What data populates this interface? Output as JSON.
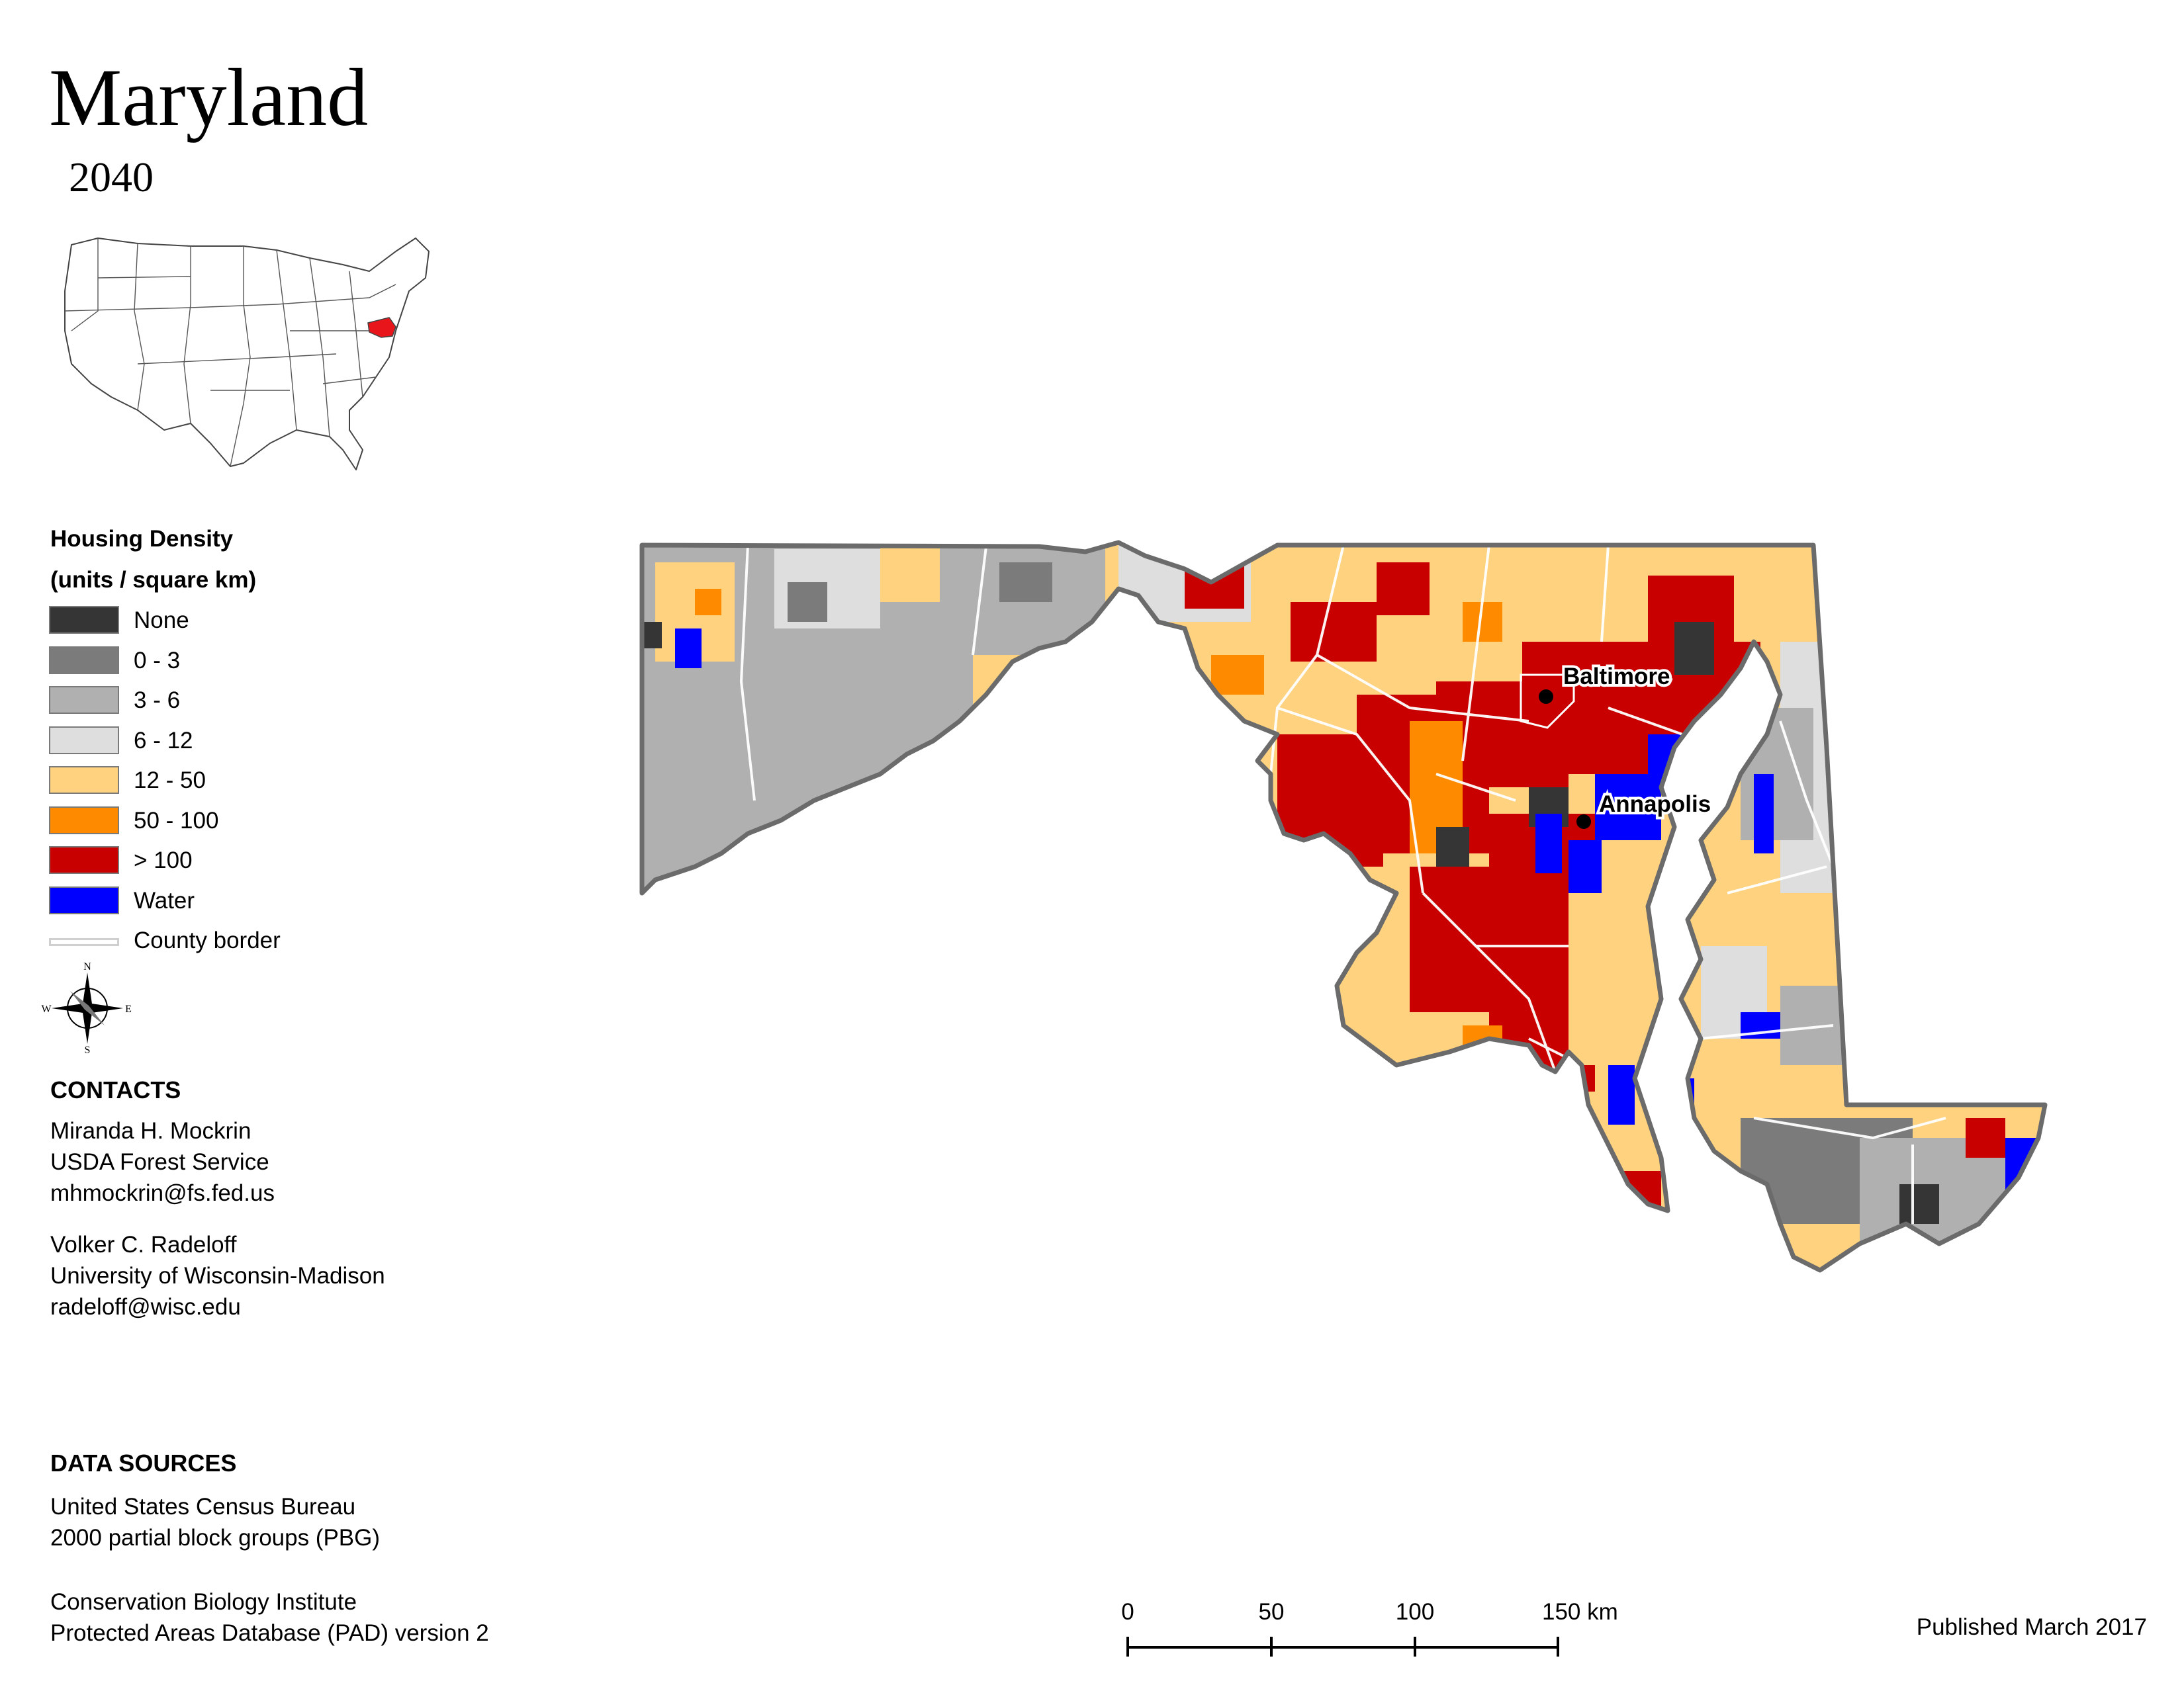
{
  "title": "Maryland",
  "year": "2040",
  "inset": {
    "highlight_color": "#e8161b",
    "icon": "usa-locator-map-icon"
  },
  "legend": {
    "title_line1": "Housing Density",
    "title_line2": "(units / square km)",
    "items": [
      {
        "label": "None",
        "color": "#353535"
      },
      {
        "label": "0 - 3",
        "color": "#7b7b7b"
      },
      {
        "label": "3 - 6",
        "color": "#b0b0b0"
      },
      {
        "label": "6 - 12",
        "color": "#dedede"
      },
      {
        "label": "12 - 50",
        "color": "#fed27f"
      },
      {
        "label": "50 - 100",
        "color": "#fe8a00"
      },
      {
        "label": "> 100",
        "color": "#c80000"
      },
      {
        "label": "Water",
        "color": "#0000ff"
      },
      {
        "label": "County border",
        "color": "#cfcfcf"
      }
    ]
  },
  "compass": {
    "n": "N",
    "s": "S",
    "e": "E",
    "w": "W"
  },
  "contacts": {
    "heading": "CONTACTS",
    "person1": [
      "Miranda H. Mockrin",
      "USDA Forest Service",
      "mhmockrin@fs.fed.us"
    ],
    "person2": [
      "Volker C. Radeloff",
      "University of Wisconsin-Madison",
      "radeloff@wisc.edu"
    ]
  },
  "data_sources": {
    "heading": "DATA SOURCES",
    "source1": [
      "United States Census Bureau",
      "2000 partial block groups (PBG)"
    ],
    "source2": [
      "Conservation Biology Institute",
      "Protected Areas Database (PAD) version 2"
    ]
  },
  "scale": {
    "ticks": [
      "0",
      "50",
      "100",
      "150 km"
    ]
  },
  "cities": [
    {
      "name": "Baltimore"
    },
    {
      "name": "Annapolis"
    }
  ],
  "published": "Published March 2017"
}
